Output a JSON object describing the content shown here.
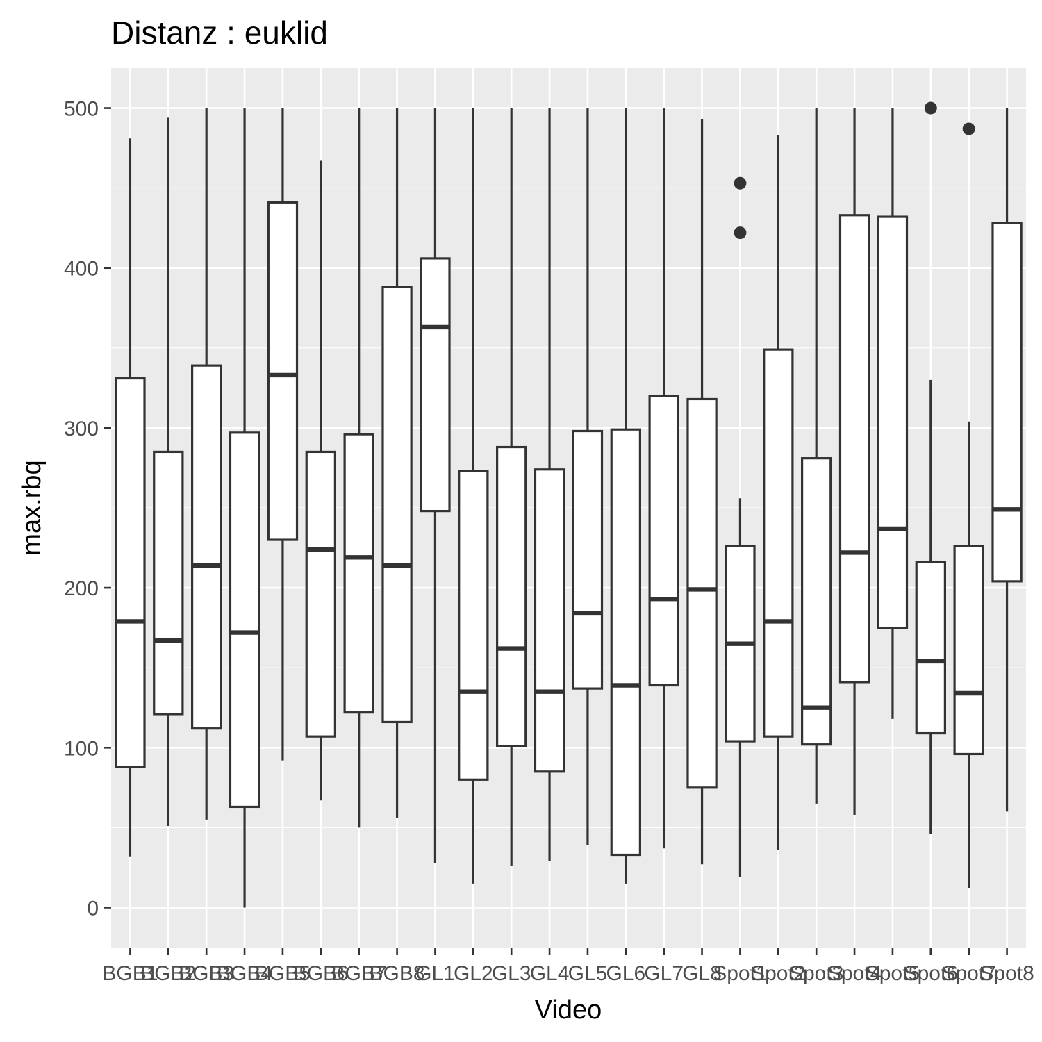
{
  "chart_data": {
    "type": "boxplot",
    "title": "Distanz : euklid",
    "xlabel": "Video",
    "ylabel": "max.rbq",
    "ylim": [
      -25,
      525
    ],
    "yticks": [
      0,
      100,
      200,
      300,
      400,
      500
    ],
    "grid": true,
    "colors": {
      "panel": "#ebebeb",
      "grid": "#ffffff",
      "box_fill": "#ffffff",
      "box_line": "#333333",
      "tick_text": "#4d4d4d"
    },
    "categories": [
      "BGB1",
      "BGB2",
      "BGB3",
      "BGB4",
      "BGB5",
      "BGB6",
      "BGB7",
      "BGB8",
      "GL1",
      "GL2",
      "GL3",
      "GL4",
      "GL5",
      "GL6",
      "GL7",
      "GL8",
      "Spot1",
      "Spot2",
      "Spot3",
      "Spot4",
      "Spot5",
      "Spot6",
      "Spot7",
      "Spot8"
    ],
    "boxes": [
      {
        "min": 32,
        "q1": 88,
        "median": 179,
        "q3": 331,
        "max": 481,
        "outliers": []
      },
      {
        "min": 51,
        "q1": 121,
        "median": 167,
        "q3": 285,
        "max": 494,
        "outliers": []
      },
      {
        "min": 55,
        "q1": 112,
        "median": 214,
        "q3": 339,
        "max": 500,
        "outliers": []
      },
      {
        "min": 0,
        "q1": 63,
        "median": 172,
        "q3": 297,
        "max": 500,
        "outliers": []
      },
      {
        "min": 92,
        "q1": 230,
        "median": 333,
        "q3": 441,
        "max": 500,
        "outliers": []
      },
      {
        "min": 67,
        "q1": 107,
        "median": 224,
        "q3": 285,
        "max": 467,
        "outliers": []
      },
      {
        "min": 50,
        "q1": 122,
        "median": 219,
        "q3": 296,
        "max": 500,
        "outliers": []
      },
      {
        "min": 56,
        "q1": 116,
        "median": 214,
        "q3": 388,
        "max": 500,
        "outliers": []
      },
      {
        "min": 28,
        "q1": 248,
        "median": 363,
        "q3": 406,
        "max": 500,
        "outliers": []
      },
      {
        "min": 15,
        "q1": 80,
        "median": 135,
        "q3": 273,
        "max": 500,
        "outliers": []
      },
      {
        "min": 26,
        "q1": 101,
        "median": 162,
        "q3": 288,
        "max": 500,
        "outliers": []
      },
      {
        "min": 29,
        "q1": 85,
        "median": 135,
        "q3": 274,
        "max": 500,
        "outliers": []
      },
      {
        "min": 39,
        "q1": 137,
        "median": 184,
        "q3": 298,
        "max": 500,
        "outliers": []
      },
      {
        "min": 15,
        "q1": 33,
        "median": 139,
        "q3": 299,
        "max": 500,
        "outliers": []
      },
      {
        "min": 37,
        "q1": 139,
        "median": 193,
        "q3": 320,
        "max": 500,
        "outliers": []
      },
      {
        "min": 27,
        "q1": 75,
        "median": 199,
        "q3": 318,
        "max": 493,
        "outliers": []
      },
      {
        "min": 19,
        "q1": 104,
        "median": 165,
        "q3": 226,
        "max": 256,
        "outliers": [
          422,
          453
        ]
      },
      {
        "min": 36,
        "q1": 107,
        "median": 179,
        "q3": 349,
        "max": 483,
        "outliers": []
      },
      {
        "min": 65,
        "q1": 102,
        "median": 125,
        "q3": 281,
        "max": 500,
        "outliers": []
      },
      {
        "min": 58,
        "q1": 141,
        "median": 222,
        "q3": 433,
        "max": 500,
        "outliers": []
      },
      {
        "min": 118,
        "q1": 175,
        "median": 237,
        "q3": 432,
        "max": 500,
        "outliers": []
      },
      {
        "min": 46,
        "q1": 109,
        "median": 154,
        "q3": 216,
        "max": 330,
        "outliers": [
          500
        ]
      },
      {
        "min": 12,
        "q1": 96,
        "median": 134,
        "q3": 226,
        "max": 304,
        "outliers": [
          487
        ]
      },
      {
        "min": 60,
        "q1": 204,
        "median": 249,
        "q3": 428,
        "max": 500,
        "outliers": []
      }
    ]
  }
}
